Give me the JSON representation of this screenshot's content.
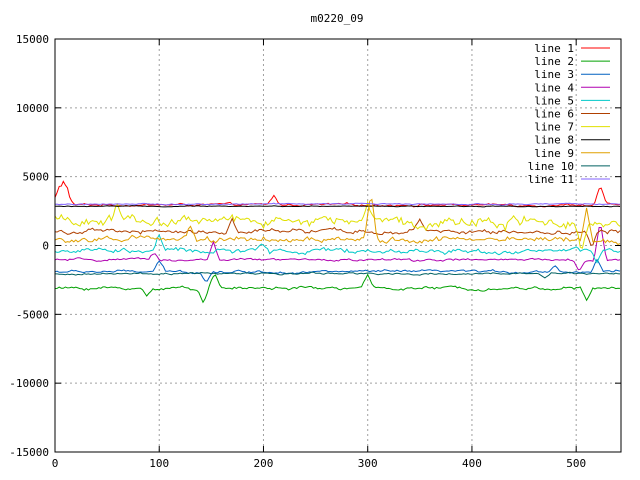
{
  "chart_data": {
    "type": "line",
    "title": "m0220_09",
    "xlabel": "",
    "ylabel": "",
    "xlim": [
      0,
      543
    ],
    "ylim": [
      -15000,
      15000
    ],
    "x_ticks": [
      0,
      100,
      200,
      300,
      400,
      500
    ],
    "y_ticks": [
      -15000,
      -10000,
      -5000,
      0,
      5000,
      10000,
      15000
    ],
    "grid": true,
    "legend_position": "top-right",
    "series": [
      {
        "name": "line 1",
        "color": "#ff0000",
        "base": 2950,
        "noise": 120,
        "spikes": [
          [
            3,
            4000
          ],
          [
            8,
            4200
          ],
          [
            12,
            3800
          ],
          [
            210,
            3600
          ],
          [
            523,
            4400
          ]
        ]
      },
      {
        "name": "line 2",
        "color": "#00a000",
        "base": -3100,
        "noise": 150,
        "spikes": [
          [
            88,
            -3700
          ],
          [
            142,
            -4000
          ],
          [
            153,
            -2000
          ],
          [
            300,
            -2300
          ],
          [
            510,
            -4100
          ]
        ]
      },
      {
        "name": "line 3",
        "color": "#0060c0",
        "base": -1900,
        "noise": 130,
        "spikes": [
          [
            100,
            -1200
          ],
          [
            145,
            -2600
          ],
          [
            480,
            -1400
          ],
          [
            520,
            -1000
          ]
        ]
      },
      {
        "name": "line 4",
        "color": "#b000b0",
        "base": -1050,
        "noise": 120,
        "spikes": [
          [
            95,
            -500
          ],
          [
            152,
            300
          ],
          [
            503,
            -1800
          ],
          [
            523,
            1800
          ]
        ]
      },
      {
        "name": "line 5",
        "color": "#00c8c8",
        "base": -400,
        "noise": 250,
        "spikes": [
          [
            100,
            800
          ],
          [
            200,
            0
          ],
          [
            520,
            -1200
          ]
        ]
      },
      {
        "name": "line 6",
        "color": "#b04000",
        "base": 1000,
        "noise": 220,
        "spikes": [
          [
            170,
            1900
          ],
          [
            350,
            1700
          ],
          [
            515,
            -100
          ]
        ]
      },
      {
        "name": "line 7",
        "color": "#e0e000",
        "base": 1800,
        "noise": 500,
        "spikes": [
          [
            60,
            3000
          ],
          [
            300,
            3200
          ],
          [
            505,
            -300
          ]
        ]
      },
      {
        "name": "line 8",
        "color": "#000000",
        "base": 2850,
        "noise": 40,
        "spikes": []
      },
      {
        "name": "line 9",
        "color": "#e0a000",
        "base": 400,
        "noise": 300,
        "spikes": [
          [
            130,
            1400
          ],
          [
            303,
            3800
          ],
          [
            510,
            2600
          ]
        ]
      },
      {
        "name": "line 10",
        "color": "#006060",
        "base": -2050,
        "noise": 90,
        "spikes": [
          [
            470,
            -2400
          ]
        ]
      },
      {
        "name": "line 11",
        "color": "#8060ff",
        "base": 3000,
        "noise": 60,
        "spikes": []
      }
    ]
  }
}
